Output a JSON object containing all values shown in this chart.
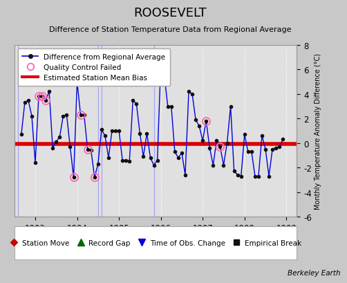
{
  "title": "ROOSEVELT",
  "subtitle": "Difference of Station Temperature Data from Regional Average",
  "ylabel_right": "Monthly Temperature Anomaly Difference (°C)",
  "credit": "Berkeley Earth",
  "bias": -0.1,
  "ylim": [
    -6,
    8
  ],
  "xlim": [
    1902.5,
    1909.25
  ],
  "xticks": [
    1903,
    1904,
    1905,
    1906,
    1907,
    1908,
    1909
  ],
  "yticks_right": [
    -6,
    -4,
    -2,
    0,
    2,
    4,
    6,
    8
  ],
  "background_color": "#c8c8c8",
  "plot_bg_color": "#e0e0e0",
  "line_color": "#0000dd",
  "bias_color": "#dd0000",
  "qc_color": "#ff69b4",
  "data_x": [
    1902.667,
    1902.75,
    1902.833,
    1902.917,
    1903.0,
    1903.083,
    1903.167,
    1903.25,
    1903.333,
    1903.417,
    1903.5,
    1903.583,
    1903.667,
    1903.75,
    1903.833,
    1903.917,
    1904.0,
    1904.083,
    1904.167,
    1904.25,
    1904.333,
    1904.417,
    1904.5,
    1904.583,
    1904.667,
    1904.75,
    1904.833,
    1904.917,
    1905.0,
    1905.083,
    1905.167,
    1905.25,
    1905.333,
    1905.417,
    1905.5,
    1905.583,
    1905.667,
    1905.75,
    1905.833,
    1905.917,
    1906.0,
    1906.083,
    1906.167,
    1906.25,
    1906.333,
    1906.417,
    1906.5,
    1906.583,
    1906.667,
    1906.75,
    1906.833,
    1906.917,
    1907.0,
    1907.083,
    1907.167,
    1907.25,
    1907.333,
    1907.417,
    1907.5,
    1907.583,
    1907.667,
    1907.75,
    1907.833,
    1907.917,
    1908.0,
    1908.083,
    1908.167,
    1908.25,
    1908.333,
    1908.417,
    1908.5,
    1908.583,
    1908.667,
    1908.75,
    1908.833,
    1908.917
  ],
  "data_y": [
    0.7,
    3.3,
    3.5,
    2.2,
    -1.6,
    3.8,
    3.8,
    3.5,
    4.2,
    -0.4,
    0.1,
    0.5,
    2.2,
    2.3,
    -0.3,
    -2.8,
    5.0,
    2.3,
    2.3,
    -0.5,
    -0.6,
    -2.8,
    -1.7,
    1.1,
    0.6,
    -1.2,
    1.0,
    1.0,
    1.0,
    -1.4,
    -1.4,
    -1.5,
    3.5,
    3.2,
    0.8,
    -1.1,
    0.8,
    -1.2,
    -1.8,
    -1.4,
    6.5,
    5.5,
    3.0,
    3.0,
    -0.7,
    -1.2,
    -0.8,
    -2.6,
    4.2,
    4.0,
    1.9,
    1.4,
    0.2,
    1.8,
    -0.4,
    -1.8,
    0.2,
    -0.3,
    -1.8,
    0.0,
    3.0,
    -2.3,
    -2.6,
    -2.7,
    0.7,
    -0.7,
    -0.7,
    -2.7,
    -2.7,
    0.6,
    -0.5,
    -2.7,
    -0.5,
    -0.4,
    -0.3,
    0.3
  ],
  "qc_x": [
    1903.083,
    1903.167,
    1903.25,
    1903.917,
    1904.0,
    1904.083,
    1904.25,
    1904.417,
    1907.083,
    1907.417
  ],
  "qc_y": [
    3.8,
    3.8,
    3.5,
    -2.8,
    5.0,
    2.3,
    -0.5,
    -2.8,
    1.8,
    -0.3
  ],
  "vlines_x": [
    1902.583,
    1904.5,
    1904.583,
    1905.833
  ],
  "vline_color": "#8888ff",
  "vline_alpha": 0.7
}
